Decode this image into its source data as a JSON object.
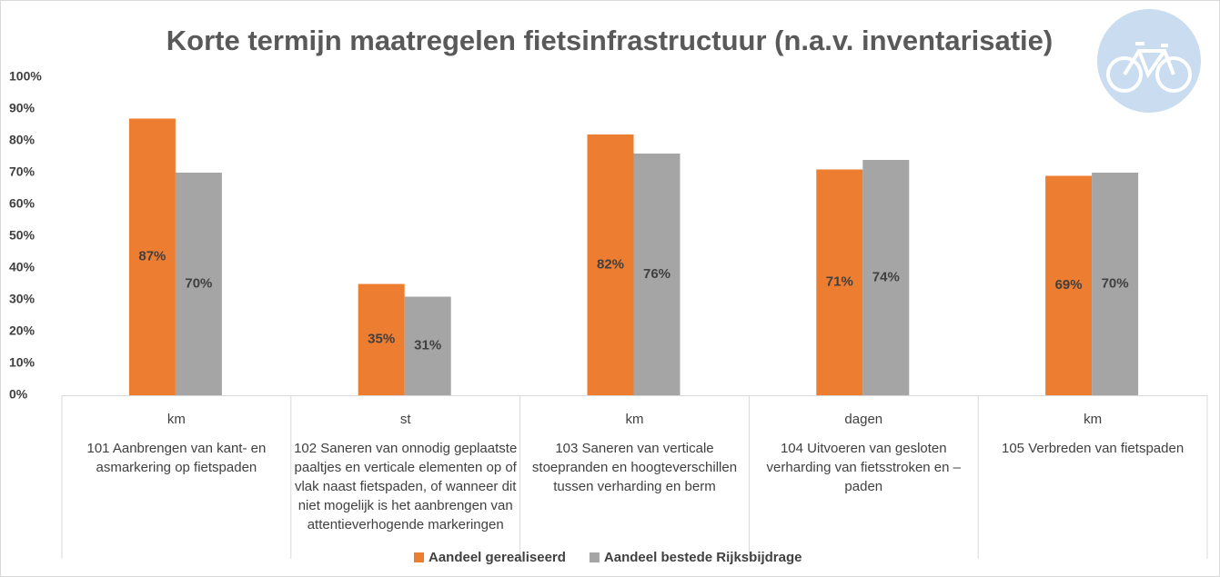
{
  "chart_data": {
    "type": "bar",
    "title": "Korte termijn maatregelen fietsinfrastructuur (n.a.v. inventarisatie)",
    "units": [
      "km",
      "st",
      "km",
      "dagen",
      "km"
    ],
    "categories": [
      "101 Aanbrengen van kant- en asmarkering op fietspaden",
      "102 Saneren van onnodig geplaatste paaltjes en verticale elementen op of vlak naast fietspaden, of wanneer dit niet mogelijk is het aanbrengen van attentieverhogende markeringen",
      "103 Saneren van verticale stoepranden en hoogteverschillen tussen verharding en berm",
      "104 Uitvoeren van gesloten verharding van fietsstroken en –paden",
      "105 Verbreden van fietspaden"
    ],
    "series": [
      {
        "name": "Aandeel gerealiseerd",
        "color": "#ed7d31",
        "values": [
          87,
          35,
          82,
          71,
          69
        ],
        "value_labels": [
          "87%",
          "35%",
          "82%",
          "71%",
          "69%"
        ]
      },
      {
        "name": "Aandeel bestede Rijksbijdrage",
        "color": "#a5a5a5",
        "values": [
          70,
          31,
          76,
          74,
          70
        ],
        "value_labels": [
          "70%",
          "31%",
          "76%",
          "74%",
          "70%"
        ]
      }
    ],
    "ylim": [
      0,
      100
    ],
    "yticks": [
      {
        "value": 0,
        "label": "0%"
      },
      {
        "value": 10,
        "label": "10%"
      },
      {
        "value": 20,
        "label": "20%"
      },
      {
        "value": 30,
        "label": "30%"
      },
      {
        "value": 40,
        "label": "40%"
      },
      {
        "value": 50,
        "label": "50%"
      },
      {
        "value": 60,
        "label": "60%"
      },
      {
        "value": 70,
        "label": "70%"
      },
      {
        "value": 80,
        "label": "80%"
      },
      {
        "value": 90,
        "label": "90%"
      },
      {
        "value": 100,
        "label": "100%"
      }
    ],
    "grid": false,
    "legend": "bottom"
  }
}
